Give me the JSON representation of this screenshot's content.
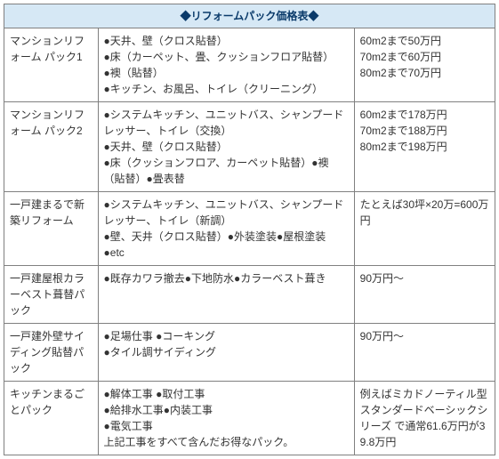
{
  "table": {
    "header": "◆リフォームパック価格表◆",
    "columns": {
      "name_width": 100,
      "desc_width": 273,
      "price_width": 150
    },
    "rows": [
      {
        "name": "マンションリフォーム パック1",
        "desc": "●天井、壁（クロス貼替）\n●床（カーペット、畳、クッションフロア貼替）\n●襖（貼替）\n●キッチン、お風呂、トイレ（クリーニング）",
        "price": "60m2まで50万円\n70m2まで60万円\n80m2まで70万円"
      },
      {
        "name": "マンションリフォーム パック2",
        "desc": "●システムキッチン、ユニットバス、シャンプードレッサー、トイレ（交換）\n●天井、壁（クロス貼替）\n●床（クッションフロア、カーペット貼替）●襖（貼替）●畳表替",
        "price": "60m2まで178万円\n70m2まで188万円\n80m2まで198万円"
      },
      {
        "name": "一戸建まるで新築リフォーム",
        "desc": "●システムキッチン、ユニットバス、シャンプードレッサー、トイレ（新調）\n●壁、天井（クロス貼替）●外装塗装●屋根塗装\n●etc",
        "price": "たとえば30坪×20万=600万円"
      },
      {
        "name": "一戸建屋根カラーベスト葺替パック",
        "desc": "●既存カワラ撤去●下地防水●カラーベスト葺き",
        "price": "90万円～"
      },
      {
        "name": "一戸建外壁サイディング貼替パック",
        "desc": "●足場仕事 ●コーキング\n●タイル調サイディング",
        "price": "90万円～"
      },
      {
        "name": "キッチンまるごとパック",
        "desc": "●解体工事 ●取付工事\n●給排水工事●内装工事\n●電気工事\n上記工事をすべて含んだお得なパック。",
        "price": "例えばミカドノーティル型スタンダードベーシックシリーズ で通常61.6万円が39.8万円"
      }
    ]
  },
  "styles": {
    "header_bg": "#d6e8f5",
    "header_color": "#0a3a6a",
    "border_color": "#808080",
    "text_color": "#333333",
    "font_size": 12
  }
}
